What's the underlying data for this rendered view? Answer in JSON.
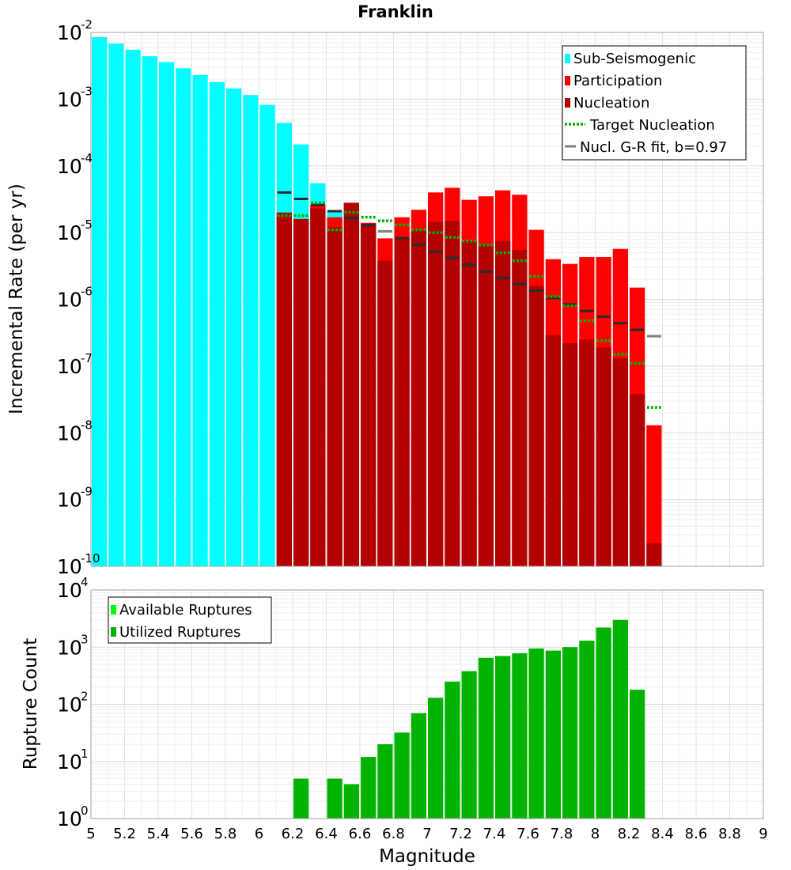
{
  "chart_data": [
    {
      "type": "bar",
      "title": "Franklin",
      "ylabel": "Incremental Rate (per yr)",
      "yscale": "log",
      "ylim": [
        1e-10,
        0.01
      ],
      "xlim": [
        5,
        9
      ],
      "grid": true,
      "legend_position": "top-right",
      "colors": {
        "sub_seismogenic": "#00ffff",
        "participation": "#ff0000",
        "nucleation": "#b30000",
        "target_nucleation": "#00b300",
        "gr_fit": "#808080",
        "gr_fit_dark": "#2b2b2b"
      },
      "legend": [
        {
          "key": "sub",
          "label": "Sub-Seismogenic"
        },
        {
          "key": "part",
          "label": "Participation"
        },
        {
          "key": "nuc",
          "label": "Nucleation"
        },
        {
          "key": "target",
          "label": "Target Nucleation"
        },
        {
          "key": "gr",
          "label": "Nucl. G-R fit, b=0.97"
        }
      ],
      "bin_width": 0.1,
      "sub_seismogenic": {
        "x": [
          5.05,
          5.15,
          5.25,
          5.35,
          5.45,
          5.55,
          5.65,
          5.75,
          5.85,
          5.95,
          6.05,
          6.15,
          6.25,
          6.35,
          6.45
        ],
        "values": [
          0.0085,
          0.0068,
          0.0055,
          0.0044,
          0.0036,
          0.0029,
          0.0023,
          0.0018,
          0.00145,
          0.00115,
          0.00082,
          0.00044,
          0.00021,
          5.5e-05,
          2.1e-05
        ]
      },
      "participation": {
        "x": [
          6.15,
          6.25,
          6.35,
          6.45,
          6.55,
          6.65,
          6.75,
          6.85,
          6.95,
          7.05,
          7.15,
          7.25,
          7.35,
          7.45,
          7.55,
          7.65,
          7.75,
          7.85,
          7.95,
          8.05,
          8.15,
          8.25,
          8.35
        ],
        "values": [
          1.9e-05,
          1.6e-05,
          2.6e-05,
          1.7e-05,
          2.8e-05,
          1.4e-05,
          8.2e-06,
          1.7e-05,
          2.2e-05,
          4e-05,
          4.7e-05,
          3.1e-05,
          3.5e-05,
          4.3e-05,
          3.7e-05,
          1.1e-05,
          4e-06,
          3.4e-06,
          4.3e-06,
          4.3e-06,
          5.7e-06,
          1.5e-06,
          1.3e-08
        ]
      },
      "nucleation": {
        "x": [
          6.15,
          6.25,
          6.35,
          6.45,
          6.55,
          6.65,
          6.75,
          6.85,
          6.95,
          7.05,
          7.15,
          7.25,
          7.35,
          7.45,
          7.55,
          7.65,
          7.75,
          7.85,
          7.95,
          8.05,
          8.15,
          8.25,
          8.35
        ],
        "values": [
          2e-05,
          1.6e-05,
          2.3e-05,
          1.2e-05,
          2.8e-05,
          1.3e-05,
          3.8e-06,
          8.5e-06,
          1.1e-05,
          1.45e-05,
          1.5e-05,
          7.5e-06,
          6.5e-06,
          7.5e-06,
          5.5e-06,
          1.6e-06,
          2.9e-07,
          2.2e-07,
          2.5e-07,
          1.9e-07,
          1.3e-07,
          3.8e-08,
          2.2e-10
        ]
      },
      "target_nucleation": {
        "x": [
          6.15,
          6.25,
          6.35,
          6.45,
          6.55,
          6.65,
          6.75,
          6.85,
          6.95,
          7.05,
          7.15,
          7.25,
          7.35,
          7.45,
          7.55,
          7.65,
          7.75,
          7.85,
          7.95,
          8.05,
          8.15,
          8.25,
          8.35
        ],
        "values": [
          1.8e-05,
          1.8e-05,
          2.8e-05,
          1.1e-05,
          2e-05,
          1.7e-05,
          1.5e-05,
          1.3e-05,
          1.1e-05,
          1e-05,
          8.5e-06,
          7.5e-06,
          6.5e-06,
          5e-06,
          3.8e-06,
          2.2e-06,
          1.1e-06,
          8e-07,
          4.8e-07,
          2.4e-07,
          1.5e-07,
          1.1e-07,
          2.4e-08
        ]
      },
      "gr_fit": {
        "x": [
          6.15,
          6.25,
          6.35,
          6.45,
          6.55,
          6.65,
          6.75,
          6.85,
          6.95,
          7.05,
          7.15,
          7.25,
          7.35,
          7.45,
          7.55,
          7.65,
          7.75,
          7.85,
          7.95,
          8.05,
          8.15,
          8.25,
          8.35
        ],
        "values": [
          4e-05,
          3.2e-05,
          2.6e-05,
          2.1e-05,
          1.65e-05,
          1.3e-05,
          1.05e-05,
          8.3e-06,
          6.6e-06,
          5.2e-06,
          4.2e-06,
          3.3e-06,
          2.6e-06,
          2.1e-06,
          1.7e-06,
          1.35e-06,
          1.05e-06,
          8.4e-07,
          6.7e-07,
          5.5e-07,
          4.4e-07,
          3.5e-07,
          2.8e-07
        ]
      }
    },
    {
      "type": "bar",
      "xlabel": "Magnitude",
      "ylabel": "Rupture Count",
      "yscale": "log",
      "ylim": [
        1,
        10000
      ],
      "xlim": [
        5,
        9
      ],
      "grid": true,
      "legend_position": "top-left",
      "colors": {
        "available": "#00ff00",
        "utilized": "#00b300"
      },
      "legend": [
        {
          "key": "available",
          "label": "Available Ruptures"
        },
        {
          "key": "utilized",
          "label": "Utilized Ruptures"
        }
      ],
      "x_ticks": [
        "5",
        "5.2",
        "5.4",
        "5.6",
        "5.8",
        "6",
        "6.2",
        "6.4",
        "6.6",
        "6.8",
        "7",
        "7.2",
        "7.4",
        "7.6",
        "7.8",
        "8",
        "8.2",
        "8.4",
        "8.6",
        "8.8",
        "9"
      ],
      "utilized_ruptures": {
        "x": [
          6.25,
          6.45,
          6.55,
          6.65,
          6.75,
          6.85,
          6.95,
          7.05,
          7.15,
          7.25,
          7.35,
          7.45,
          7.55,
          7.65,
          7.75,
          7.85,
          7.95,
          8.05,
          8.15,
          8.25
        ],
        "values": [
          5,
          5,
          4,
          12,
          20,
          32,
          70,
          130,
          250,
          380,
          650,
          700,
          780,
          950,
          870,
          1000,
          1300,
          2200,
          3000,
          180
        ]
      }
    }
  ]
}
